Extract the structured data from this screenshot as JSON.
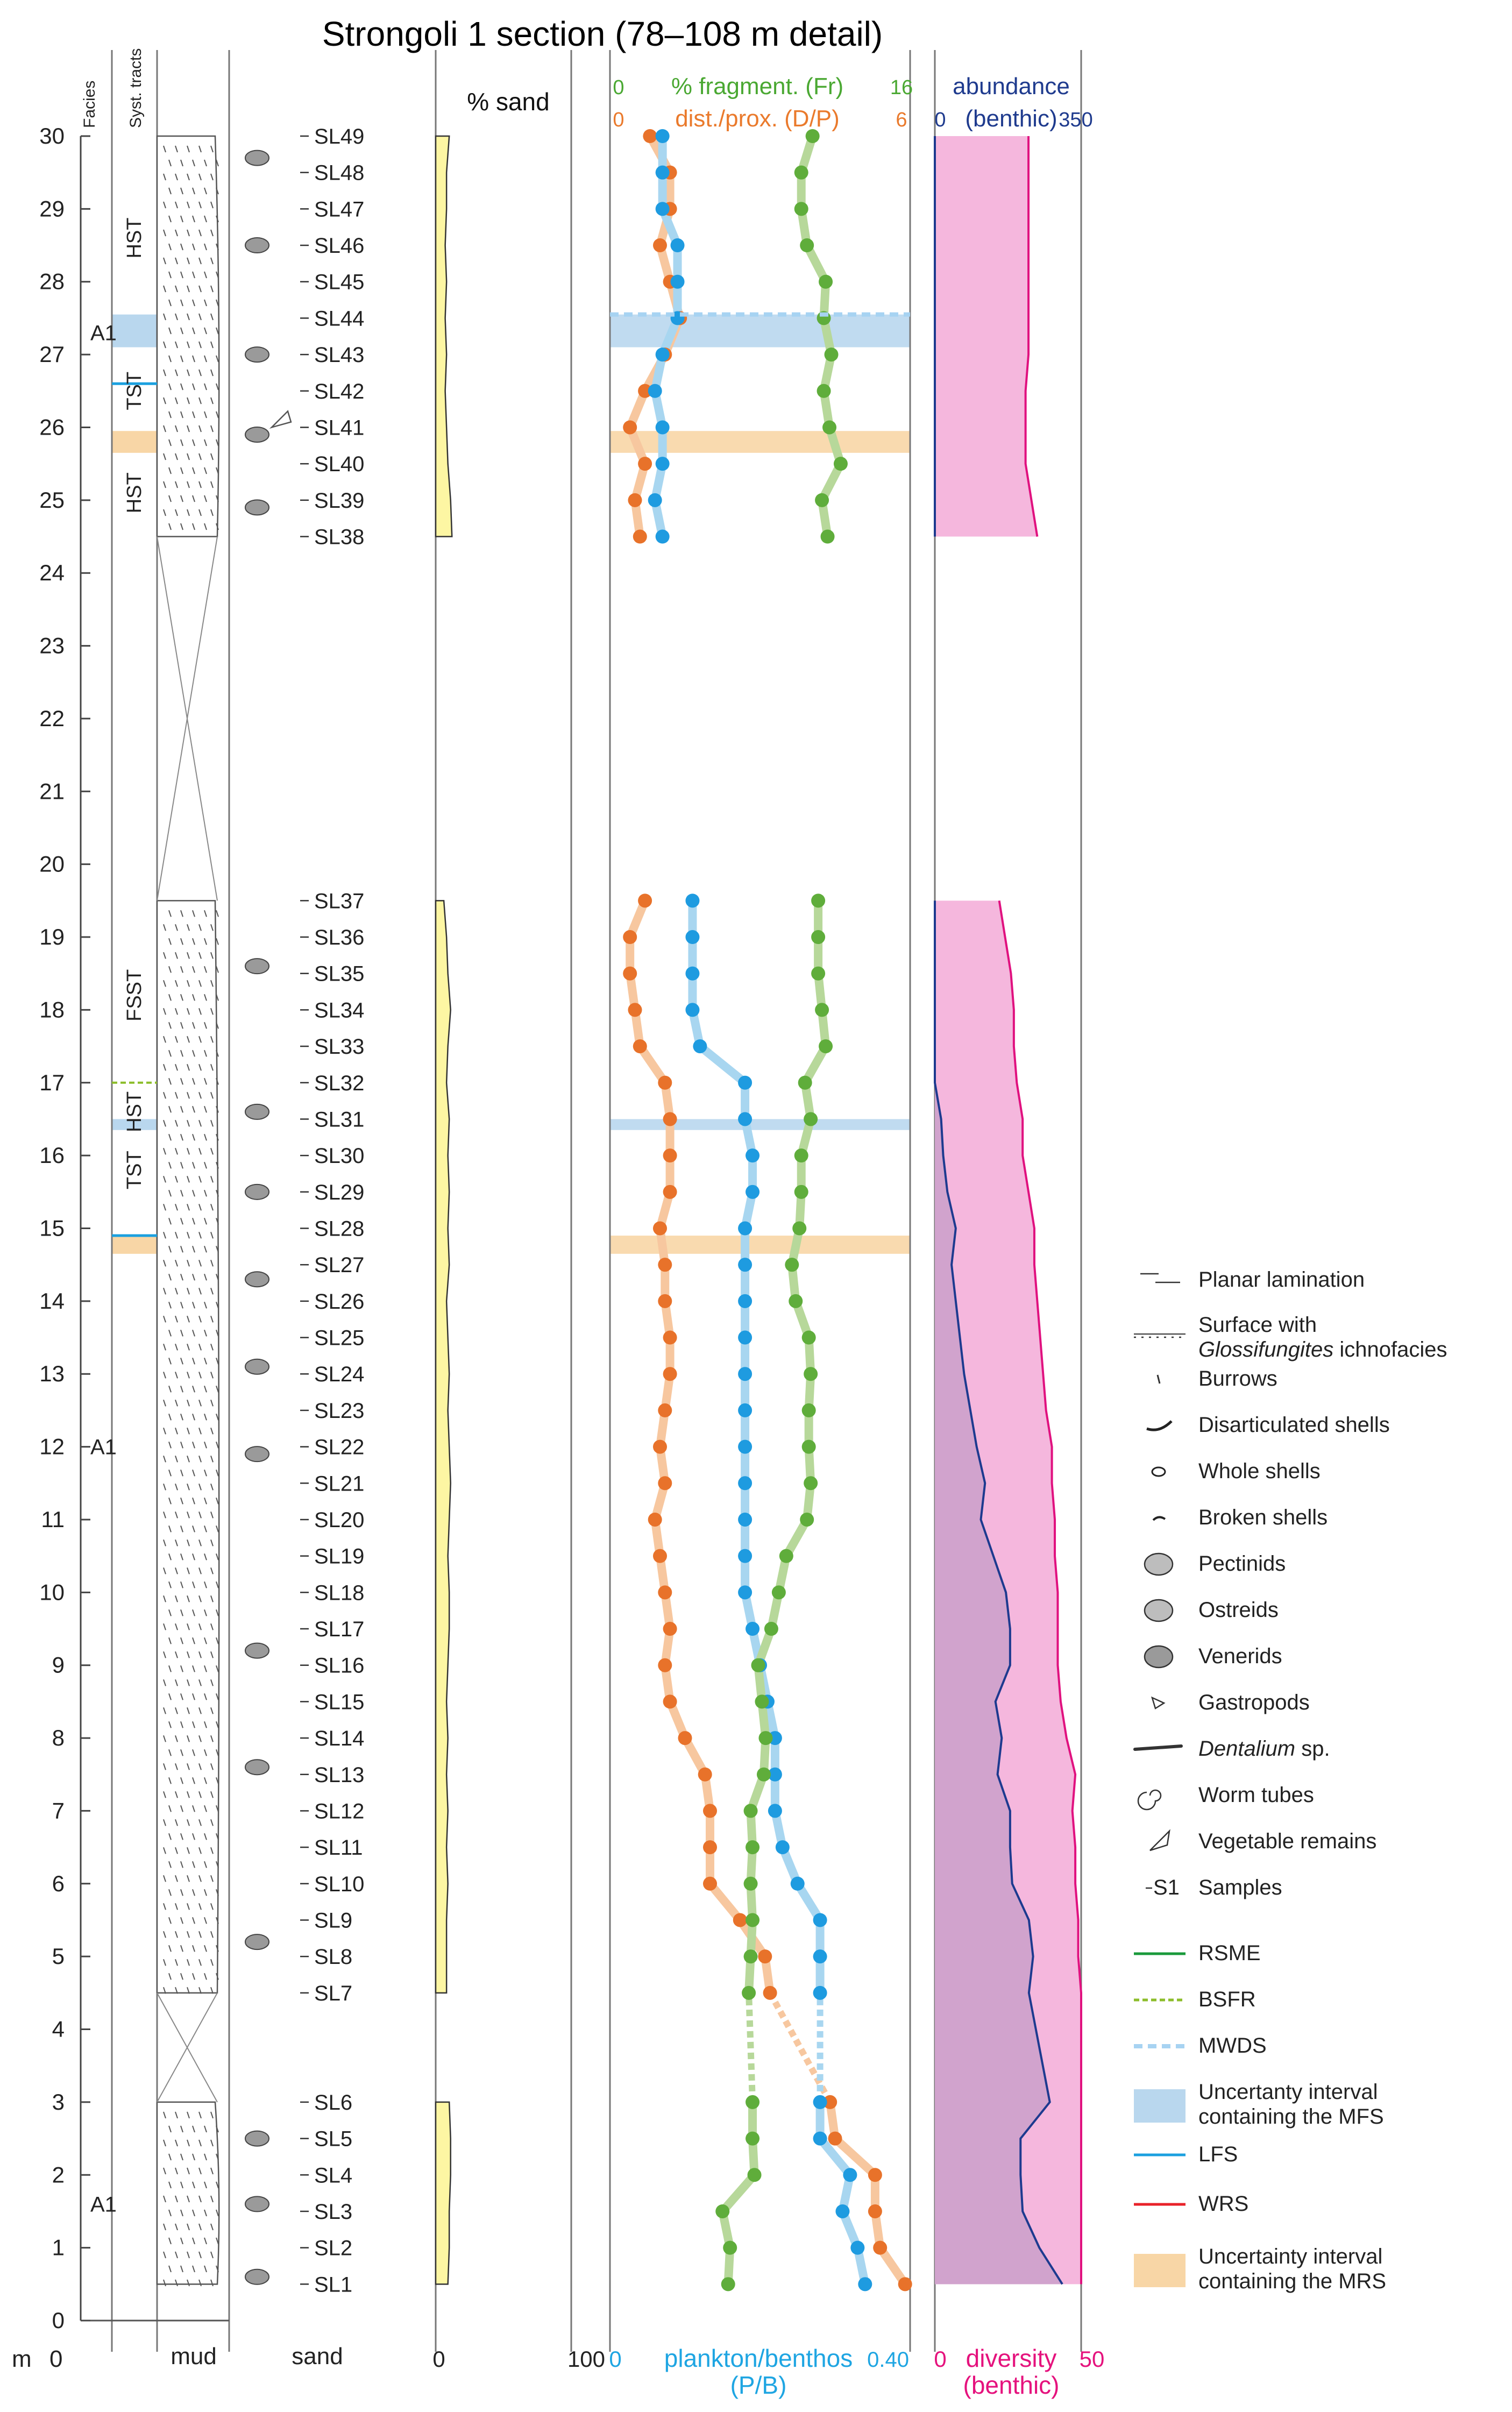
{
  "chart_data": {
    "type": "stratigraphic-log",
    "title": "Strongoli 1 section (78–108 m detail)",
    "depth_axis": {
      "unit": "m",
      "min": 0,
      "max": 30,
      "ticks": [
        0,
        1,
        2,
        3,
        4,
        5,
        6,
        7,
        8,
        9,
        10,
        11,
        12,
        13,
        14,
        15,
        16,
        17,
        18,
        19,
        20,
        21,
        22,
        23,
        24,
        25,
        26,
        27,
        28,
        29,
        30
      ]
    },
    "column_headers": {
      "facies": "Facies",
      "systems_tracts": "Syst. tracts",
      "mud": "mud",
      "sand": "sand"
    },
    "facies_labels": [
      {
        "label": "A1",
        "depth": 27.3
      },
      {
        "label": "A1",
        "depth": 12.0
      },
      {
        "label": "A1",
        "depth": 1.6
      }
    ],
    "systems_tracts": [
      {
        "label": "HST",
        "depth": 28.6
      },
      {
        "label": "TST",
        "depth": 26.5
      },
      {
        "label": "HST",
        "depth": 25.1
      },
      {
        "label": "FSST",
        "depth": 18.2
      },
      {
        "label": "HST",
        "depth": 16.6
      },
      {
        "label": "TST",
        "depth": 15.8
      }
    ],
    "samples": [
      "SL1",
      "SL2",
      "SL3",
      "SL4",
      "SL5",
      "SL6",
      "SL7",
      "SL8",
      "SL9",
      "SL10",
      "SL11",
      "SL12",
      "SL13",
      "SL14",
      "SL15",
      "SL16",
      "SL17",
      "SL18",
      "SL19",
      "SL20",
      "SL21",
      "SL22",
      "SL23",
      "SL24",
      "SL25",
      "SL26",
      "SL27",
      "SL28",
      "SL29",
      "SL30",
      "SL31",
      "SL32",
      "SL33",
      "SL34",
      "SL35",
      "SL36",
      "SL37",
      "SL38",
      "SL39",
      "SL40",
      "SL41",
      "SL42",
      "SL43",
      "SL44",
      "SL45",
      "SL46",
      "SL47",
      "SL48",
      "SL49"
    ],
    "sample_depths": [
      0.5,
      1.0,
      1.5,
      2.0,
      2.5,
      3.0,
      4.5,
      5.0,
      5.5,
      6.0,
      6.5,
      7.0,
      7.5,
      8.0,
      8.5,
      9.0,
      9.5,
      10.0,
      10.5,
      11.0,
      11.5,
      12.0,
      12.5,
      13.0,
      13.5,
      14.0,
      14.5,
      15.0,
      15.5,
      16.0,
      16.5,
      17.0,
      17.5,
      18.0,
      18.5,
      19.0,
      19.5,
      24.5,
      25.0,
      25.5,
      26.0,
      26.5,
      27.0,
      27.5,
      28.0,
      28.5,
      29.0,
      29.5,
      30.0
    ],
    "sand_percent": {
      "label": "% sand",
      "axis_min": 0,
      "axis_max": 100,
      "values": [
        9,
        10,
        10,
        11,
        11,
        10,
        8,
        8,
        8,
        9,
        8,
        9,
        8,
        9,
        8,
        9,
        10,
        10,
        9,
        10,
        11,
        10,
        9,
        10,
        9,
        8,
        10,
        9,
        10,
        9,
        10,
        8,
        9,
        11,
        9,
        8,
        6,
        12,
        11,
        9,
        8,
        7,
        8,
        7,
        8,
        7,
        8,
        8,
        10
      ]
    },
    "fragment_percent": {
      "label": "% fragment. (Fr)",
      "axis_min": 0,
      "axis_max": 16,
      "values": [
        6.3,
        6.4,
        6.0,
        7.7,
        7.6,
        7.6,
        7.4,
        7.5,
        7.6,
        7.5,
        7.6,
        7.5,
        8.2,
        8.3,
        8.1,
        7.9,
        8.6,
        9.0,
        9.4,
        10.5,
        10.7,
        10.6,
        10.6,
        10.7,
        10.6,
        9.9,
        9.7,
        10.1,
        10.2,
        10.2,
        10.7,
        10.4,
        11.5,
        11.3,
        11.1,
        11.1,
        11.1,
        11.6,
        11.3,
        12.3,
        11.7,
        11.4,
        11.8,
        11.4,
        11.5,
        10.5,
        10.2,
        10.2,
        10.8
      ]
    },
    "dist_prox_ratio": {
      "label": "dist./prox. (D/P)",
      "axis_min": 0,
      "axis_max": 6,
      "values": [
        5.9,
        5.4,
        5.3,
        5.3,
        4.5,
        4.4,
        3.2,
        3.1,
        2.6,
        2.0,
        2.0,
        2.0,
        1.9,
        1.5,
        1.2,
        1.1,
        1.2,
        1.1,
        1.0,
        0.9,
        1.1,
        1.0,
        1.1,
        1.2,
        1.2,
        1.1,
        1.1,
        1.0,
        1.2,
        1.2,
        1.2,
        1.1,
        0.6,
        0.5,
        0.4,
        0.4,
        0.7,
        0.6,
        0.5,
        0.7,
        0.4,
        0.7,
        1.1,
        1.4,
        1.2,
        1.0,
        1.2,
        1.2,
        0.8
      ]
    },
    "plankton_benthos": {
      "label": "plankton/benthos (P/B)",
      "axis_min": 0,
      "axis_max": 0.4,
      "values": [
        0.34,
        0.33,
        0.31,
        0.32,
        0.28,
        0.28,
        0.28,
        0.28,
        0.28,
        0.25,
        0.23,
        0.22,
        0.22,
        0.22,
        0.21,
        0.2,
        0.19,
        0.18,
        0.18,
        0.18,
        0.18,
        0.18,
        0.18,
        0.18,
        0.18,
        0.18,
        0.18,
        0.18,
        0.19,
        0.19,
        0.18,
        0.18,
        0.12,
        0.11,
        0.11,
        0.11,
        0.11,
        0.07,
        0.06,
        0.07,
        0.07,
        0.06,
        0.07,
        0.09,
        0.09,
        0.09,
        0.07,
        0.07,
        0.07
      ]
    },
    "abundance_benthic": {
      "label": "abundance (benthic)",
      "axis_min": 0,
      "axis_max": 350,
      "values": [
        305,
        250,
        210,
        205,
        205,
        275,
        225,
        235,
        225,
        185,
        180,
        180,
        150,
        160,
        145,
        180,
        180,
        170,
        140,
        110,
        120,
        100,
        85,
        70,
        60,
        50,
        40,
        50,
        30,
        20,
        15,
        0,
        0,
        0,
        0,
        0,
        0,
        0,
        0,
        0,
        0,
        0,
        0,
        0,
        0,
        0,
        0,
        0,
        0
      ]
    },
    "diversity_benthic": {
      "label": "diversity (benthic)",
      "axis_min": 0,
      "axis_max": 50,
      "values": [
        50,
        50,
        50,
        50,
        50,
        50,
        50,
        49,
        49,
        48,
        48,
        47,
        48,
        45,
        43,
        42,
        42,
        42,
        41,
        41,
        40,
        40,
        38,
        37,
        36,
        35,
        34,
        34,
        32,
        30,
        30,
        28,
        27,
        27,
        26,
        24,
        22,
        35,
        33,
        31,
        31,
        31,
        32,
        32,
        32,
        32,
        32,
        32,
        32
      ]
    },
    "gap_intervals": [
      [
        3.0,
        4.5
      ],
      [
        19.5,
        24.5
      ]
    ],
    "surfaces": [
      {
        "type": "MWDS",
        "depth": 27.55
      },
      {
        "type": "MFS uncertainty",
        "from": 27.1,
        "to": 27.55
      },
      {
        "type": "MFS uncertainty",
        "from": 16.35,
        "to": 16.5
      },
      {
        "type": "MRS uncertainty",
        "from": 25.65,
        "to": 25.95
      },
      {
        "type": "MRS uncertainty",
        "from": 14.65,
        "to": 14.9
      },
      {
        "type": "LFS",
        "depth": 26.6
      },
      {
        "type": "LFS",
        "depth": 14.9
      },
      {
        "type": "BSFR",
        "depth": 17.0
      }
    ],
    "bottom_axis_labels": {
      "m": "m",
      "zero": "0",
      "sand_max": "100",
      "pb_min": "0",
      "pb_label": "plankton/benthos",
      "pb_abbr": "(P/B)",
      "pb_max": "0.40",
      "div_min": "0",
      "div_label": "diversity",
      "div_sub": "(benthic)",
      "div_max": "50"
    },
    "top_axis_labels": {
      "fr_min": "0",
      "fr_max": "16",
      "dp_min": "0",
      "dp_max": "6",
      "ab_min": "0",
      "ab_max": "350",
      "ab_label": "abundance",
      "ab_sub": "(benthic)"
    },
    "legend": [
      {
        "key": "planar",
        "label": "Planar lamination"
      },
      {
        "key": "glossi",
        "label": "Surface with",
        "italic": "Glossifungites",
        "tail": " ichnofacies"
      },
      {
        "key": "burrows",
        "label": "Burrows"
      },
      {
        "key": "disart",
        "label": "Disarticulated shells"
      },
      {
        "key": "whole",
        "label": "Whole shells"
      },
      {
        "key": "broken",
        "label": "Broken shells"
      },
      {
        "key": "pectinids",
        "label": "Pectinids"
      },
      {
        "key": "ostreids",
        "label": "Ostreids"
      },
      {
        "key": "venerids",
        "label": "Venerids"
      },
      {
        "key": "gastropods",
        "label": "Gastropods"
      },
      {
        "key": "dentalium",
        "label": "",
        "italic": "Dentalium",
        "tail": " sp."
      },
      {
        "key": "worm",
        "label": "Worm tubes"
      },
      {
        "key": "veg",
        "label": "Vegetable remains"
      },
      {
        "key": "samples",
        "label": "Samples",
        "prefix": "S1"
      },
      {
        "key": "rsme",
        "label": "RSME"
      },
      {
        "key": "bsfr",
        "label": "BSFR"
      },
      {
        "key": "mwds",
        "label": "MWDS"
      },
      {
        "key": "mfs",
        "label": "Uncertanty interval",
        "label2": "containing the MFS"
      },
      {
        "key": "lfs",
        "label": "LFS"
      },
      {
        "key": "wrs",
        "label": "WRS"
      },
      {
        "key": "mrs",
        "label": "Uncertainty interval",
        "label2": "containing the MRS"
      }
    ],
    "colors": {
      "sand_fill": "#fdf6a3",
      "green": "#5fad3b",
      "orange": "#e8722a",
      "blue_dot": "#1e9be0",
      "green_band": "#b7d89a",
      "orange_band": "#f7c79f",
      "blue_band": "#a8d6f0",
      "mfs_band": "#b9d7ee",
      "mrs_band": "#f8d6a6",
      "abundance_line": "#1d3a8f",
      "diversity_line": "#e0117f",
      "pink_fill": "#f5b7dd",
      "purple_fill": "#d1a3cd",
      "rsme": "#1a9a3b",
      "bsfr": "#8cbd2a",
      "mwds": "#a7d3f2",
      "lfs": "#1ba0df",
      "wrs": "#e8232a",
      "fr_axis": "#4aa832",
      "dp_axis": "#ea7a2c",
      "ab_axis": "#1f3b8e",
      "pb_axis": "#1ea5e2",
      "div_axis": "#e5127d"
    }
  }
}
